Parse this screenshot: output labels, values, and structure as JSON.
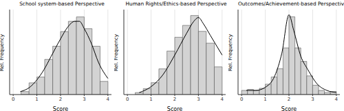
{
  "chart_data": [
    {
      "type": "histogram",
      "title": "School system-based Perspective",
      "x_label": "Score",
      "y_label": "Rel. Frequency",
      "bins": [
        0.33,
        0.67,
        1.0,
        1.33,
        1.67,
        2.0,
        2.33,
        2.67,
        3.0,
        3.33,
        3.67,
        4.0
      ],
      "counts": [
        0.02,
        0.08,
        0.12,
        0.24,
        0.33,
        0.43,
        0.5,
        0.53,
        0.45,
        0.33,
        0.09
      ],
      "color": "#d3d3d3",
      "density": {
        "color": "#000000",
        "x": [
          0.3,
          0.7,
          1.0,
          1.3,
          1.6,
          2.0,
          2.3,
          2.6,
          2.8,
          3.0,
          3.3,
          3.6,
          4.0
        ],
        "y": [
          0.02,
          0.05,
          0.1,
          0.17,
          0.26,
          0.38,
          0.46,
          0.5,
          0.5,
          0.45,
          0.35,
          0.22,
          0.11
        ]
      },
      "xlim": [
        -0.15,
        4.15
      ],
      "xticks": [
        0,
        1,
        2,
        3,
        4
      ],
      "ylim": [
        0,
        0.58
      ],
      "yticks": [
        0,
        0.2,
        0.4
      ],
      "grid": true,
      "tick_labels": "x"
    },
    {
      "type": "histogram",
      "title": "Human Rights/Ethics-based Perspective",
      "x_label": "Score",
      "y_label": "Rel. Frequency",
      "bins": [
        0.33,
        0.67,
        1.0,
        1.33,
        1.67,
        2.0,
        2.33,
        2.67,
        3.0,
        3.33,
        3.67,
        4.0
      ],
      "counts": [
        0.01,
        0.03,
        0.06,
        0.13,
        0.22,
        0.29,
        0.35,
        0.4,
        0.32,
        0.26,
        0.14
      ],
      "color": "#d3d3d3",
      "density": {
        "color": "#000000",
        "x": [
          0.5,
          1.0,
          1.5,
          2.0,
          2.5,
          2.8,
          3.0,
          3.2,
          3.5,
          3.8,
          4.0
        ],
        "y": [
          0.01,
          0.04,
          0.1,
          0.2,
          0.31,
          0.37,
          0.39,
          0.36,
          0.3,
          0.24,
          0.2
        ]
      },
      "xlim": [
        -0.15,
        4.15
      ],
      "xticks": [
        0,
        1,
        2,
        3,
        4
      ],
      "ylim": [
        0,
        0.43
      ],
      "yticks": [
        0,
        0.1,
        0.2,
        0.3,
        0.4
      ],
      "grid": true,
      "tick_labels": "x"
    },
    {
      "type": "histogram",
      "title": "Outcomes/Achievement-based Perspective",
      "x_label": "Score",
      "y_label": "Rel. Frequency",
      "bins": [
        0.0,
        0.25,
        0.5,
        0.75,
        1.0,
        1.25,
        1.5,
        1.75,
        2.0,
        2.25,
        2.5,
        2.75,
        3.0,
        3.25,
        3.5,
        3.75,
        4.0
      ],
      "counts": [
        0.04,
        0.05,
        0.04,
        0.06,
        0.1,
        0.17,
        0.25,
        0.45,
        0.75,
        0.45,
        0.32,
        0.18,
        0.09,
        0.04,
        0.02,
        0.03
      ],
      "color": "#d3d3d3",
      "density": {
        "color": "#000000",
        "x": [
          0.2,
          0.6,
          1.0,
          1.4,
          1.7,
          2.0,
          2.2,
          2.5,
          2.8,
          3.2,
          3.6,
          4.0
        ],
        "y": [
          0.04,
          0.04,
          0.07,
          0.18,
          0.4,
          0.77,
          0.62,
          0.37,
          0.24,
          0.1,
          0.04,
          0.02
        ]
      },
      "xlim": [
        -0.15,
        4.15
      ],
      "xticks": [
        0,
        1,
        2,
        3,
        4
      ],
      "ylim": [
        0,
        0.82
      ],
      "yticks": [
        0,
        0.2,
        0.4,
        0.6,
        0.8
      ],
      "grid": true,
      "tick_labels": "x"
    }
  ]
}
